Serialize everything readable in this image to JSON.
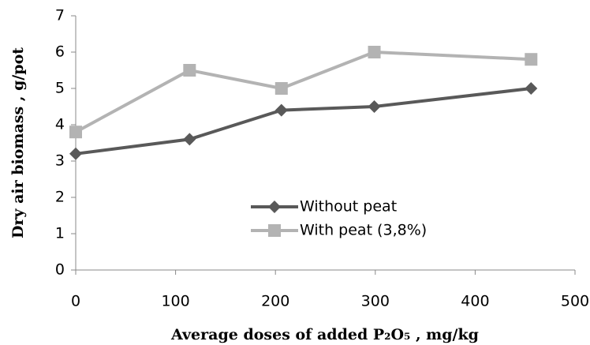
{
  "chart_data": {
    "type": "line",
    "x_label": "Average doses of added P₂O₅ , mg/kg",
    "y_label": "Dry air biomass , g/pot",
    "x": [
      0,
      114,
      206,
      299,
      456
    ],
    "series": [
      {
        "name": "Without peat",
        "color": "#595959",
        "marker": "diamond",
        "values": [
          3.2,
          3.6,
          4.4,
          4.5,
          5.0
        ]
      },
      {
        "name": "With peat (3,8%)",
        "color": "#b3b3b3",
        "marker": "square",
        "values": [
          3.8,
          5.5,
          5.0,
          6.0,
          5.8
        ]
      }
    ],
    "xlim": [
      0,
      500
    ],
    "xticks": [
      0,
      100,
      200,
      300,
      400,
      500
    ],
    "ylim": [
      0,
      7
    ],
    "yticks": [
      0,
      1,
      2,
      3,
      4,
      5,
      6,
      7
    ],
    "grid": false,
    "legend": "center"
  }
}
